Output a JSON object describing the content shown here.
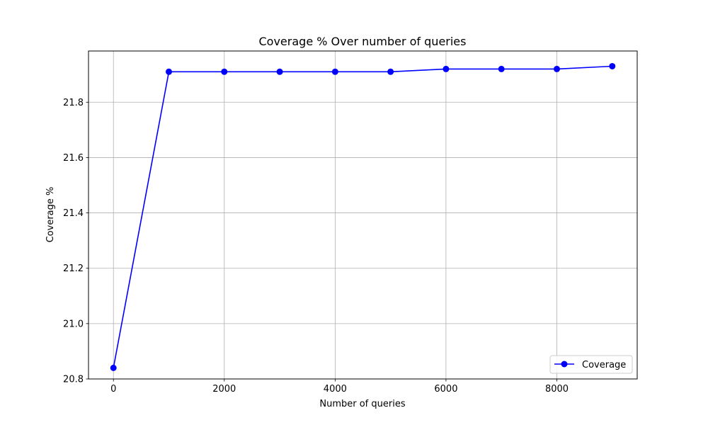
{
  "chart_data": {
    "type": "line",
    "title": "Coverage % Over number of queries",
    "xlabel": "Number of queries",
    "ylabel": "Coverage %",
    "x": [
      0,
      1000,
      2000,
      3000,
      4000,
      5000,
      6000,
      7000,
      8000,
      9000
    ],
    "series": [
      {
        "name": "Coverage",
        "color": "#0000ff",
        "marker": "circle",
        "values": [
          20.84,
          21.91,
          21.91,
          21.91,
          21.91,
          21.91,
          21.92,
          21.92,
          21.92,
          21.93
        ]
      }
    ],
    "xlim": [
      -450,
      9450
    ],
    "ylim": [
      20.8,
      21.985
    ],
    "xticks": [
      0,
      2000,
      4000,
      6000,
      8000
    ],
    "yticks": [
      20.8,
      21.0,
      21.2,
      21.4,
      21.6,
      21.8
    ],
    "xtick_labels": [
      "0",
      "2000",
      "4000",
      "6000",
      "8000"
    ],
    "ytick_labels": [
      "20.8",
      "21.0",
      "21.2",
      "21.4",
      "21.6",
      "21.8"
    ],
    "grid": true,
    "legend_position": "bottom-right"
  }
}
